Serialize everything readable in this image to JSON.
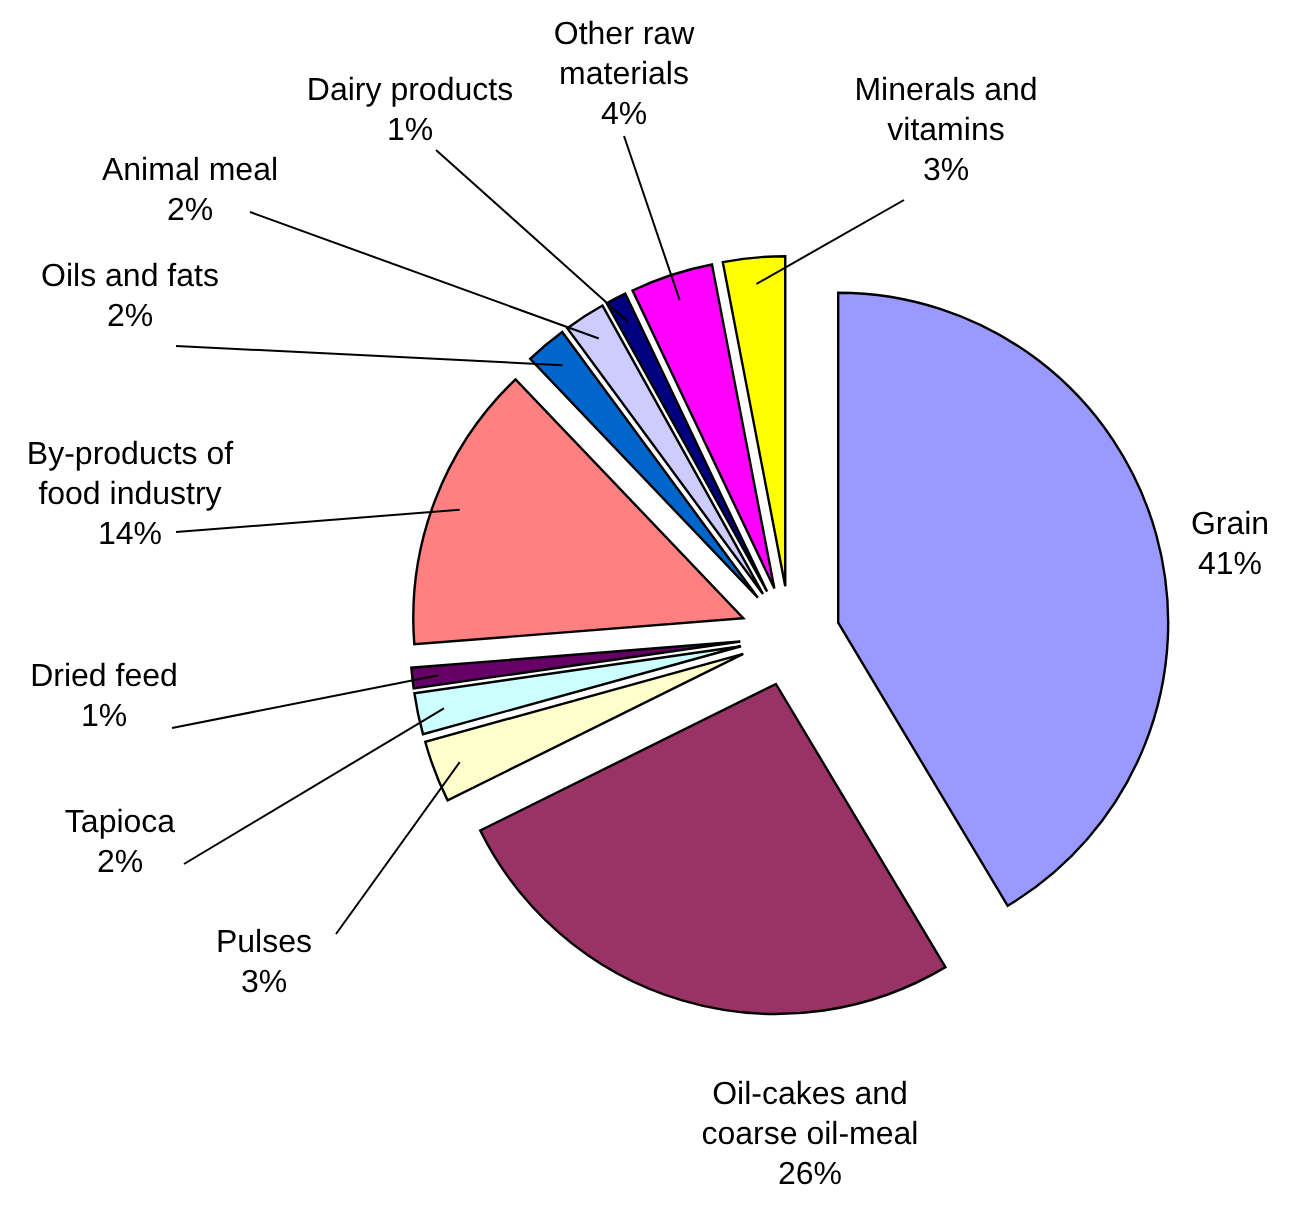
{
  "chart_data": {
    "type": "pie",
    "categories": [
      "Grain",
      "Oil-cakes and coarse oil-meal",
      "Pulses",
      "Tapioca",
      "Dried feed",
      "By-products of food industry",
      "Oils and fats",
      "Animal meal",
      "Dairy products",
      "Other raw materials",
      "Minerals and vitamins"
    ],
    "values": [
      41,
      26,
      3,
      2,
      1,
      14,
      2,
      2,
      1,
      4,
      3
    ],
    "value_labels": [
      "41%",
      "26%",
      "3%",
      "2%",
      "1%",
      "14%",
      "2%",
      "2%",
      "1%",
      "4%",
      "3%"
    ],
    "colors": [
      "#9999ff",
      "#993366",
      "#ffffcc",
      "#ccffff",
      "#660066",
      "#ff8080",
      "#0066cc",
      "#ccccff",
      "#000080",
      "#ff00ff",
      "#ffff00"
    ]
  }
}
